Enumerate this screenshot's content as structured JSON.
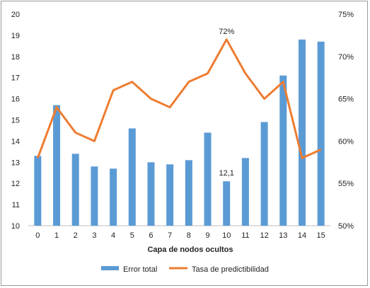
{
  "chart_data": {
    "type": "bar",
    "categories": [
      "0",
      "1",
      "2",
      "3",
      "4",
      "5",
      "6",
      "7",
      "8",
      "9",
      "10",
      "11",
      "12",
      "13",
      "14",
      "15"
    ],
    "xlabel": "Capa de nodos ocultos",
    "series": [
      {
        "name": "Error total",
        "type": "bar",
        "axis": "left",
        "values": [
          13.3,
          15.7,
          13.4,
          12.8,
          12.7,
          14.6,
          13.0,
          12.9,
          13.1,
          14.4,
          12.1,
          13.2,
          14.9,
          17.1,
          18.8,
          18.7
        ]
      },
      {
        "name": "Tasa de predictibilidad",
        "type": "line",
        "axis": "right",
        "values": [
          58,
          64,
          61,
          60,
          66,
          67,
          65,
          64,
          67,
          68,
          72,
          68,
          65,
          67,
          58,
          59
        ]
      }
    ],
    "ylim_left": [
      10,
      20
    ],
    "yticks_left": [
      "10",
      "11",
      "12",
      "13",
      "14",
      "15",
      "16",
      "17",
      "18",
      "19",
      "20"
    ],
    "ylim_right": [
      50,
      75
    ],
    "yticks_right": [
      "50%",
      "55%",
      "60%",
      "65%",
      "70%",
      "75%"
    ],
    "annotations": [
      {
        "series": "Error total",
        "category": "10",
        "text": "12,1"
      },
      {
        "series": "Tasa de predictibilidad",
        "category": "10",
        "text": "72%"
      }
    ],
    "grid": false,
    "legend": "bottom",
    "colors": {
      "bar": "#5b9bd5",
      "line": "#ed7d31",
      "axis": "#bfbfbf"
    }
  }
}
